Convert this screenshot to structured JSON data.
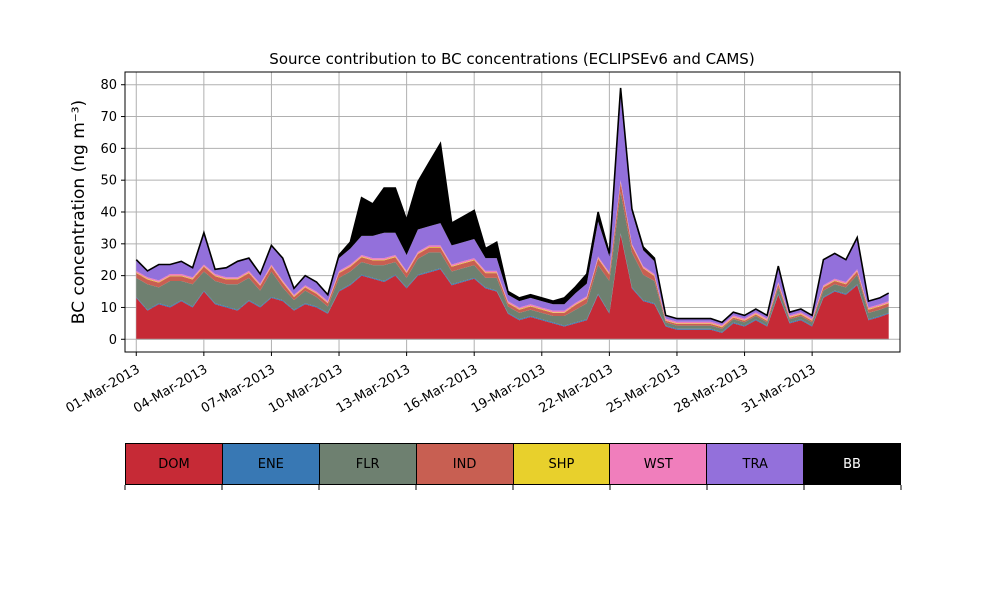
{
  "chart_data": {
    "type": "area",
    "stacked": true,
    "title": "Source contribution to BC concentrations (ECLIPSEv6 and CAMS)",
    "ylabel": "BC concentration (ng m⁻³)",
    "xlabel": "",
    "ylim": [
      -4,
      84
    ],
    "xlim": [
      -0.5,
      33.9
    ],
    "yticks": [
      0,
      10,
      20,
      30,
      40,
      50,
      60,
      70,
      80
    ],
    "xtick_positions": [
      0,
      3,
      6,
      9,
      12,
      15,
      18,
      21,
      24,
      27,
      30
    ],
    "xtick_labels": [
      "01-Mar-2013",
      "04-Mar-2013",
      "07-Mar-2013",
      "10-Mar-2013",
      "13-Mar-2013",
      "16-Mar-2013",
      "19-Mar-2013",
      "22-Mar-2013",
      "25-Mar-2013",
      "28-Mar-2013",
      "31-Mar-2013"
    ],
    "grid": true,
    "legend_position": "bottom",
    "x_day": [
      0.0,
      0.5,
      1.0,
      1.5,
      2.0,
      2.5,
      3.0,
      3.5,
      4.0,
      4.5,
      5.0,
      5.5,
      6.0,
      6.5,
      7.0,
      7.5,
      8.0,
      8.5,
      9.0,
      9.5,
      10.0,
      10.5,
      11.0,
      11.5,
      12.0,
      12.5,
      13.0,
      13.5,
      14.0,
      14.5,
      15.0,
      15.5,
      16.0,
      16.5,
      17.0,
      17.5,
      18.0,
      18.5,
      19.0,
      19.5,
      20.0,
      20.5,
      21.0,
      21.5,
      22.0,
      22.5,
      23.0,
      23.5,
      24.0,
      24.5,
      25.0,
      25.5,
      26.0,
      26.5,
      27.0,
      27.5,
      28.0,
      28.5,
      29.0,
      29.5,
      30.0,
      30.5,
      31.0,
      31.5,
      32.0,
      32.5,
      33.0,
      33.4
    ],
    "series": [
      {
        "name": "DOM",
        "color": "#c62a36",
        "values": [
          13,
          9,
          11,
          10,
          12,
          10,
          15,
          11,
          10,
          9,
          12,
          10,
          13,
          12,
          9,
          11,
          10,
          8,
          15,
          17,
          20,
          19,
          18,
          20,
          16,
          20,
          21,
          22,
          17,
          18,
          19,
          16,
          15,
          8,
          6,
          7,
          6,
          5,
          4,
          5,
          6,
          14,
          8,
          33,
          16,
          12,
          11,
          4,
          3,
          3,
          3,
          3,
          2,
          5,
          4,
          6,
          4,
          14,
          5,
          6,
          4,
          13,
          15,
          14,
          17,
          6,
          7,
          8
        ]
      },
      {
        "name": "ENE",
        "color": "#3878b4",
        "values": [
          0.3,
          0.3,
          0.3,
          0.3,
          0.3,
          0.3,
          0.3,
          0.3,
          0.3,
          0.3,
          0.3,
          0.3,
          0.3,
          0.3,
          0.3,
          0.3,
          0.3,
          0.3,
          0.3,
          0.3,
          0.3,
          0.3,
          0.3,
          0.3,
          0.3,
          0.3,
          0.3,
          0.3,
          0.3,
          0.3,
          0.3,
          0.3,
          0.3,
          0.3,
          0.3,
          0.3,
          0.3,
          0.3,
          0.3,
          0.3,
          0.3,
          0.3,
          0.3,
          0.3,
          0.3,
          0.3,
          0.3,
          0.3,
          0.3,
          0.3,
          0.3,
          0.3,
          0.3,
          0.3,
          0.3,
          0.3,
          0.3,
          0.3,
          0.3,
          0.3,
          0.3,
          0.3,
          0.3,
          0.3,
          0.3,
          0.3,
          0.3,
          0.3
        ]
      },
      {
        "name": "FLR",
        "color": "#6e8070",
        "values": [
          6,
          8,
          5,
          8,
          6,
          7,
          6,
          7,
          7,
          8,
          7,
          5,
          8,
          4,
          3,
          4,
          3,
          2,
          4,
          4,
          4,
          4,
          5,
          4,
          3,
          5,
          6,
          5,
          4,
          4,
          4,
          3,
          4,
          2,
          2,
          2,
          2,
          2,
          3,
          4,
          5,
          9,
          10,
          13,
          11,
          8,
          7,
          1,
          1,
          1,
          1,
          1,
          1,
          1,
          1,
          1,
          1,
          2,
          1,
          1,
          1,
          2,
          2,
          2,
          3,
          2,
          2,
          2
        ]
      },
      {
        "name": "IND",
        "color": "#c85f52",
        "values": [
          1.5,
          1.5,
          1.5,
          1.5,
          1.5,
          1.5,
          1.5,
          1.5,
          1.5,
          1.5,
          1.5,
          1.5,
          1.5,
          1.5,
          1,
          1,
          1,
          1,
          1.5,
          1.5,
          1.5,
          1.5,
          1.5,
          1.5,
          1.5,
          1.5,
          1.5,
          1.5,
          1.5,
          1.5,
          1.5,
          1.5,
          1.5,
          1,
          1,
          1,
          1,
          1,
          1,
          1.5,
          1.5,
          2,
          2,
          3,
          2,
          2,
          1.5,
          0.5,
          0.5,
          0.5,
          0.5,
          0.5,
          0.5,
          0.5,
          0.5,
          0.5,
          0.5,
          1,
          0.5,
          0.5,
          0.5,
          1,
          1,
          1,
          1,
          1,
          1,
          1
        ]
      },
      {
        "name": "SHP",
        "color": "#e8d02c",
        "values": [
          0.2,
          0.2,
          0.2,
          0.2,
          0.2,
          0.2,
          0.2,
          0.2,
          0.2,
          0.2,
          0.2,
          0.2,
          0.2,
          0.2,
          0.2,
          0.2,
          0.2,
          0.2,
          0.2,
          0.2,
          0.2,
          0.2,
          0.2,
          0.2,
          0.2,
          0.2,
          0.2,
          0.2,
          0.2,
          0.2,
          0.2,
          0.2,
          0.2,
          0.2,
          0.2,
          0.2,
          0.2,
          0.2,
          0.2,
          0.2,
          0.2,
          0.2,
          0.2,
          0.2,
          0.2,
          0.2,
          0.2,
          0.2,
          0.2,
          0.2,
          0.2,
          0.2,
          0.2,
          0.2,
          0.2,
          0.2,
          0.2,
          0.2,
          0.2,
          0.2,
          0.2,
          0.2,
          0.2,
          0.2,
          0.2,
          0.2,
          0.2,
          0.2
        ]
      },
      {
        "name": "WST",
        "color": "#f07ebc",
        "values": [
          0.5,
          0.5,
          0.5,
          0.5,
          0.5,
          0.5,
          0.5,
          0.5,
          0.5,
          0.5,
          0.5,
          0.5,
          0.5,
          0.5,
          0.5,
          0.5,
          0.5,
          0.5,
          0.5,
          0.5,
          0.5,
          0.5,
          0.5,
          0.5,
          0.5,
          0.5,
          0.5,
          0.5,
          0.5,
          0.5,
          0.5,
          0.5,
          0.5,
          0.5,
          0.5,
          0.5,
          0.5,
          0.5,
          0.5,
          0.5,
          0.5,
          0.5,
          0.5,
          0.5,
          0.5,
          0.5,
          0.5,
          0.5,
          0.5,
          0.5,
          0.5,
          0.5,
          0.5,
          0.5,
          0.5,
          0.5,
          0.5,
          0.5,
          0.5,
          0.5,
          0.5,
          0.5,
          0.5,
          0.5,
          0.5,
          0.5,
          0.5,
          0.5
        ]
      },
      {
        "name": "TRA",
        "color": "#9370db",
        "values": [
          3.5,
          2,
          5,
          3,
          4,
          3,
          10,
          1.5,
          3,
          5,
          4,
          3,
          6,
          7,
          2,
          3,
          3,
          2,
          4,
          5,
          6,
          7,
          8,
          7,
          5,
          7,
          6,
          7,
          6,
          6,
          6,
          4,
          4,
          2,
          2,
          2,
          2,
          2,
          2,
          3,
          4,
          11,
          5,
          27,
          10,
          5,
          4,
          1,
          1,
          1,
          1,
          1,
          0.8,
          1,
          1,
          1,
          1,
          5,
          1,
          1,
          1,
          8,
          8,
          7,
          10,
          2,
          2,
          2.5
        ]
      },
      {
        "name": "BB",
        "color": "#000000",
        "values": [
          0,
          0,
          0,
          0,
          0,
          0,
          0,
          0,
          0,
          0,
          0,
          0,
          0,
          0,
          0,
          0,
          0,
          0,
          1,
          2,
          12,
          10,
          14,
          14,
          11,
          15,
          20,
          25,
          7,
          8,
          9,
          3,
          5,
          1,
          1,
          1,
          1,
          1,
          2,
          2,
          3,
          3,
          1,
          2,
          1,
          1,
          1,
          0,
          0,
          0,
          0,
          0,
          0,
          0,
          0,
          0,
          0,
          0,
          0,
          0,
          0,
          0,
          0,
          0,
          0,
          0,
          0,
          0
        ]
      }
    ]
  }
}
